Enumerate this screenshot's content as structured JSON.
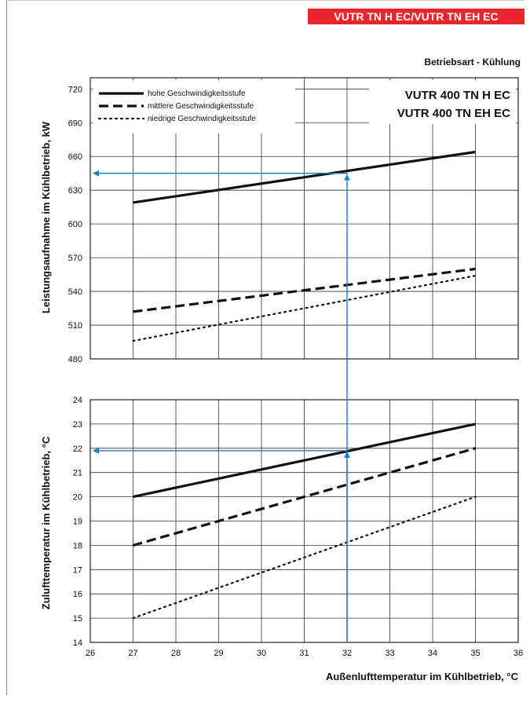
{
  "header": {
    "badge": "VUTR TN H EC/VUTR TN EH EC",
    "mode": "Betriebsart - Kühlung",
    "badge_color": "#e8262b"
  },
  "chart_data": [
    {
      "type": "line",
      "ylabel": "Leistungsaufnahme im Kühlbetrieb, kW",
      "xlabel": "",
      "xlim": [
        26,
        36
      ],
      "ylim": [
        480,
        730
      ],
      "yticks": [
        480,
        510,
        540,
        570,
        600,
        630,
        660,
        690,
        720
      ],
      "xticks": [
        26,
        27,
        28,
        29,
        30,
        31,
        32,
        33,
        34,
        35,
        36
      ],
      "grid": true,
      "legend_position": "top-left",
      "models": [
        "VUTR 400 TN H EC",
        "VUTR 400 TN EH EC"
      ],
      "series": [
        {
          "name": "hohe Geschwindigkeitsstufe",
          "style": "solid",
          "x": [
            27,
            35
          ],
          "values": [
            619,
            664
          ]
        },
        {
          "name": "mittlere Geschwindigkeitsstufe",
          "style": "dashed",
          "x": [
            27,
            35
          ],
          "values": [
            522,
            560
          ]
        },
        {
          "name": "niedrige Geschwindigkeitsstufe",
          "style": "dotted",
          "x": [
            27,
            35
          ],
          "values": [
            496,
            554
          ]
        }
      ],
      "guide": {
        "x": 32,
        "y": 645,
        "color": "#1a7fc1"
      }
    },
    {
      "type": "line",
      "ylabel": "Zulufttemperatur im Kühlbetrieb, °C",
      "xlabel": "Außenlufttemperatur im Kühlbetrieb, °C",
      "xlim": [
        26,
        36
      ],
      "ylim": [
        14,
        24
      ],
      "yticks": [
        14,
        15,
        16,
        17,
        18,
        19,
        20,
        21,
        22,
        23,
        24
      ],
      "xticks": [
        26,
        27,
        28,
        29,
        30,
        31,
        32,
        33,
        34,
        35,
        36
      ],
      "grid": true,
      "series": [
        {
          "name": "hohe Geschwindigkeitsstufe",
          "style": "solid",
          "x": [
            27,
            35
          ],
          "values": [
            20,
            23
          ]
        },
        {
          "name": "mittlere Geschwindigkeitsstufe",
          "style": "dashed",
          "x": [
            27,
            35
          ],
          "values": [
            18,
            22
          ]
        },
        {
          "name": "niedrige Geschwindigkeitsstufe",
          "style": "dotted",
          "x": [
            27,
            35
          ],
          "values": [
            15,
            20
          ]
        }
      ],
      "guide": {
        "x": 32,
        "y": 21.9,
        "color": "#1a7fc1"
      }
    }
  ]
}
